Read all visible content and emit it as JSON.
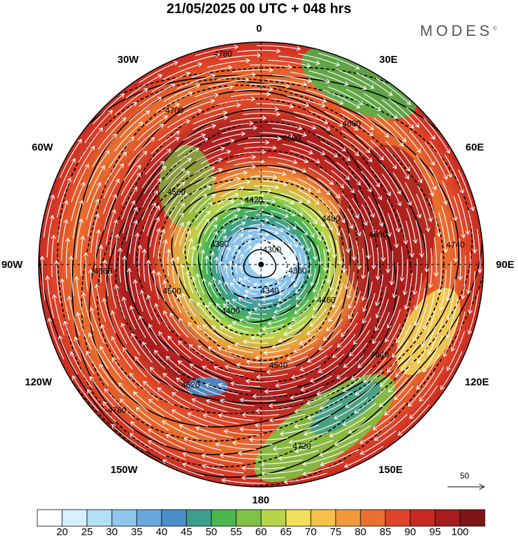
{
  "title": "21/05/2025  00 UTC  + 048 hrs",
  "brand": "MODES",
  "brand_mark": "©",
  "longitudes": {
    "n0": "0",
    "n30e": "30E",
    "n60e": "60E",
    "n90e": "90E",
    "n120e": "120E",
    "n150e": "150E",
    "n180": "180",
    "n150w": "150W",
    "n120w": "120W",
    "n90w": "90W",
    "n60w": "60W",
    "n30w": "30W"
  },
  "vector_reference": "50",
  "colorbar": {
    "labels": [
      "20",
      "25",
      "30",
      "35",
      "40",
      "45",
      "50",
      "55",
      "60",
      "65",
      "70",
      "75",
      "80",
      "85",
      "90",
      "95",
      "100"
    ],
    "colors": [
      "#ffffff",
      "#d6f1fb",
      "#b3e0f5",
      "#8ec7ec",
      "#68a9dd",
      "#4b8fc9",
      "#3e9e8e",
      "#4cb54e",
      "#7fc246",
      "#b8d54a",
      "#f2e05a",
      "#f6c14a",
      "#f19a3c",
      "#e9702f",
      "#de4428",
      "#c82a22",
      "#a51d1e",
      "#7f1416"
    ]
  },
  "contour_labels": [
    "4780",
    "4760",
    "4740",
    "4720",
    "4700",
    "4680",
    "4660",
    "4640",
    "4620",
    "4600",
    "4580",
    "4560",
    "4540",
    "4500",
    "4480",
    "4460",
    "4420",
    "4400",
    "4380",
    "4360",
    "4340",
    "4300"
  ],
  "icons": {
    "pole_marker": "pole-dot-icon",
    "vector_arrow": "reference-arrow-icon"
  }
}
